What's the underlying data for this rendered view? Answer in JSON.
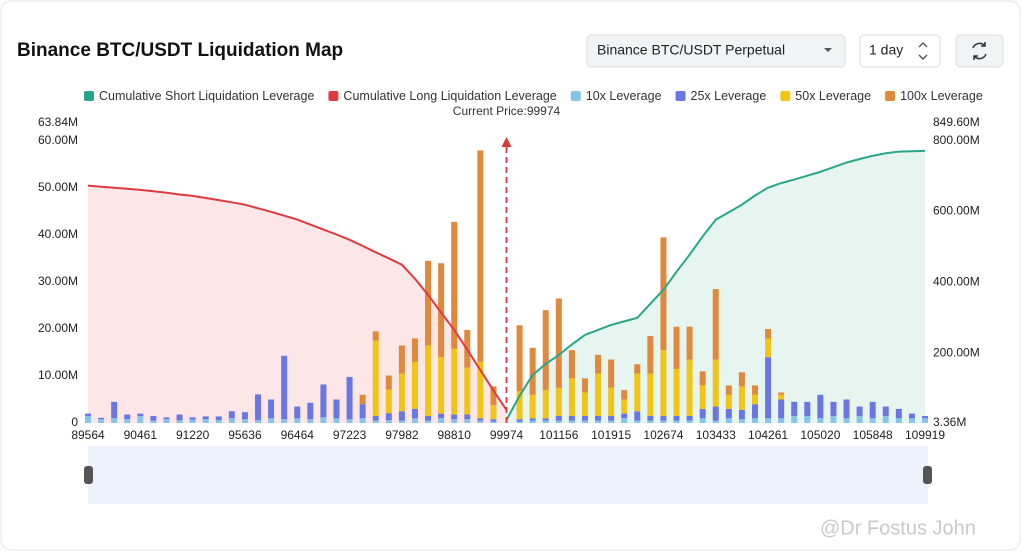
{
  "chart_data": {
    "type": "liquidation-map",
    "title": "Binance BTC/USDT Liquidation Map",
    "annotation": "Current Price:99974",
    "current_price": 99974,
    "categories": [
      "89564",
      null,
      null,
      null,
      "90461",
      null,
      null,
      null,
      "91220",
      null,
      null,
      null,
      "95636",
      null,
      null,
      null,
      "96464",
      null,
      null,
      null,
      "97223",
      null,
      null,
      null,
      "97982",
      null,
      null,
      null,
      "98810",
      null,
      null,
      null,
      "99974",
      null,
      null,
      null,
      "101156",
      null,
      null,
      null,
      "101915",
      null,
      null,
      null,
      "102674",
      null,
      null,
      null,
      "103433",
      null,
      null,
      null,
      "104261",
      null,
      null,
      null,
      "105020",
      null,
      null,
      null,
      "105848",
      null,
      null,
      null,
      "109919"
    ],
    "ylim": [
      0,
      63840000
    ],
    "yticks": [
      0,
      {
        "value": 10000000,
        "label": "10.00M"
      },
      {
        "value": 20000000,
        "label": "20.00M"
      },
      {
        "value": 30000000,
        "label": "30.00M"
      },
      {
        "value": 40000000,
        "label": "40.00M"
      },
      {
        "value": 50000000,
        "label": "50.00M"
      },
      {
        "value": 60000000,
        "label": "60.00M"
      },
      {
        "value": 63840000,
        "label": "63.84M"
      }
    ],
    "y2lim": [
      3360000,
      849600000
    ],
    "y2ticks": [
      {
        "value": 3360000,
        "label": "3.36M"
      },
      {
        "value": 200000000,
        "label": "200.00M"
      },
      {
        "value": 400000000,
        "label": "400.00M"
      },
      {
        "value": 600000000,
        "label": "600.00M"
      },
      {
        "value": 800000000,
        "label": "800.00M"
      },
      {
        "value": 849600000,
        "label": "849.60M"
      }
    ],
    "grid": false,
    "series": [
      {
        "name": "Cumulative Short Liquidation Leverage",
        "kind": "line",
        "axis": "y2",
        "color": "#2aa58a",
        "fill": "#e6f5f0",
        "values": [
          null,
          null,
          null,
          null,
          null,
          null,
          null,
          null,
          null,
          null,
          null,
          null,
          null,
          null,
          null,
          null,
          null,
          null,
          null,
          null,
          null,
          null,
          null,
          null,
          null,
          null,
          null,
          null,
          null,
          null,
          null,
          null,
          12000000.0,
          80000000.0,
          139000000.0,
          170000000.0,
          195000000.0,
          225000000.0,
          252000000.0,
          266000000.0,
          280000000.0,
          290000000.0,
          300000000.0,
          340000000.0,
          379000000.0,
          430000000.0,
          478000000.0,
          530000000.0,
          577000000.0,
          598000000.0,
          619000000.0,
          645000000.0,
          667000000.0,
          680000000.0,
          690000000.0,
          701000000.0,
          712000000.0,
          725000000.0,
          738000000.0,
          748000000.0,
          757000000.0,
          764000000.0,
          769000000.0,
          770000000.0,
          771000000.0
        ]
      },
      {
        "name": "Cumulative Long Liquidation Leverage",
        "kind": "line",
        "axis": "y2",
        "color": "#e0393e",
        "fill": "#fde6e8",
        "values": [
          673000000.0,
          670000000.0,
          667000000.0,
          664000000.0,
          661000000.0,
          657000000.0,
          653000000.0,
          648000000.0,
          644000000.0,
          638000000.0,
          632000000.0,
          626000000.0,
          619000000.0,
          609000000.0,
          599000000.0,
          588000000.0,
          577000000.0,
          563000000.0,
          549000000.0,
          535000000.0,
          520000000.0,
          503000000.0,
          485000000.0,
          468000000.0,
          450000000.0,
          410000000.0,
          365000000.0,
          315000000.0,
          266000000.0,
          210000000.0,
          153000000.0,
          95000000.0,
          40000000.0,
          null,
          null,
          null,
          null,
          null,
          null,
          null,
          null,
          null,
          null,
          null,
          null,
          null,
          null,
          null,
          null,
          null,
          null,
          null,
          null,
          null,
          null,
          null,
          null,
          null,
          null,
          null,
          null,
          null,
          null,
          null,
          null
        ]
      },
      {
        "name": "10x Leverage",
        "kind": "bar",
        "color": "#86c5ea",
        "values": [
          1500000.0,
          800000.0,
          1000000.0,
          800000.0,
          1500000.0,
          500000.0,
          800000.0,
          600000.0,
          700000.0,
          800000.0,
          600000.0,
          1000000.0,
          800000.0,
          600000.0,
          1000000.0,
          800000.0,
          1000000.0,
          800000.0,
          1200000.0,
          1000000.0,
          800000.0,
          1000000.0,
          500000.0,
          600000.0,
          500000.0,
          1000000.0,
          500000.0,
          1000000.0,
          800000.0,
          800000.0,
          500000.0,
          300000.0,
          0,
          300000.0,
          500000.0,
          500000.0,
          500000.0,
          500000.0,
          500000.0,
          500000.0,
          500000.0,
          1000000.0,
          500000.0,
          500000.0,
          500000.0,
          500000.0,
          500000.0,
          1000000.0,
          500000.0,
          1000000.0,
          800000.0,
          1000000.0,
          1000000.0,
          1000000.0,
          1500000.0,
          1500000.0,
          1000000.0,
          1500000.0,
          1000000.0,
          1500000.0,
          1000000.0,
          1500000.0,
          1000000.0,
          1000000.0,
          1000000.0
        ]
      },
      {
        "name": "25x Leverage",
        "kind": "bar",
        "color": "#6a76e4",
        "values": [
          500000.0,
          300000.0,
          3500000.0,
          1000000.0,
          500000.0,
          1000000.0,
          400000.0,
          1200000.0,
          500000.0,
          600000.0,
          800000.0,
          1500000.0,
          1500000.0,
          5500000.0,
          4000000.0,
          13500000.0,
          2500000.0,
          3500000.0,
          7000000.0,
          4000000.0,
          9000000.0,
          3000000.0,
          1000000.0,
          1500000.0,
          2000000.0,
          2000000.0,
          1000000.0,
          1000000.0,
          1000000.0,
          1000000.0,
          500000.0,
          500000.0,
          0,
          500000.0,
          500000.0,
          500000.0,
          1000000.0,
          1000000.0,
          1000000.0,
          1000000.0,
          1000000.0,
          1000000.0,
          2000000.0,
          1000000.0,
          1000000.0,
          1000000.0,
          1000000.0,
          2000000.0,
          3000000.0,
          2000000.0,
          2000000.0,
          3000000.0,
          13000000.0,
          4000000.0,
          3000000.0,
          3000000.0,
          5000000.0,
          3000000.0,
          4000000.0,
          2000000.0,
          3500000.0,
          2000000.0,
          2000000.0,
          1000000.0,
          500000.0
        ]
      },
      {
        "name": "50x Leverage",
        "kind": "bar",
        "color": "#f2c417",
        "values": [
          0,
          0,
          0,
          0,
          0,
          0,
          0,
          0,
          0,
          0,
          0,
          0,
          0,
          0,
          0,
          0,
          0,
          0,
          0,
          0,
          0,
          0,
          16000000.0,
          5000000.0,
          8000000.0,
          10000000.0,
          15000000.0,
          12000000.0,
          14000000.0,
          10000000.0,
          12000000.0,
          3000000.0,
          0,
          6000000.0,
          5000000.0,
          6000000.0,
          6000000.0,
          8000000.0,
          5000000.0,
          9000000.0,
          6000000.0,
          3000000.0,
          8000000.0,
          9000000.0,
          14000000.0,
          10000000.0,
          12000000.0,
          5000000.0,
          10000000.0,
          3000000.0,
          5000000.0,
          2000000.0,
          4000000.0,
          1000000.0,
          0,
          0,
          0,
          0,
          0,
          0,
          0,
          0,
          0,
          0,
          0
        ]
      },
      {
        "name": "100x Leverage",
        "kind": "bar",
        "color": "#e0893c",
        "values": [
          0,
          0,
          0,
          0,
          0,
          0,
          0,
          0,
          0,
          0,
          0,
          0,
          0,
          0,
          0,
          0,
          0,
          0,
          0,
          0,
          0,
          2000000.0,
          2000000.0,
          3000000.0,
          6000000.0,
          5000000.0,
          18000000.0,
          20000000.0,
          27000000.0,
          8000000.0,
          45000000.0,
          4000000.0,
          0,
          14000000.0,
          10000000.0,
          17000000.0,
          19000000.0,
          6000000.0,
          3000000.0,
          4000000.0,
          6000000.0,
          2000000.0,
          2000000.0,
          8000000.0,
          24000000.0,
          9000000.0,
          7000000.0,
          3000000.0,
          15000000.0,
          2000000.0,
          3000000.0,
          2000000.0,
          2000000.0,
          500000.0,
          0,
          0,
          0,
          0,
          0,
          0,
          0,
          0,
          0,
          0,
          0
        ]
      }
    ]
  },
  "controls": {
    "market": "Binance BTC/USDT Perpetual",
    "period": "1 day"
  },
  "watermark": "@Dr Fostus John"
}
